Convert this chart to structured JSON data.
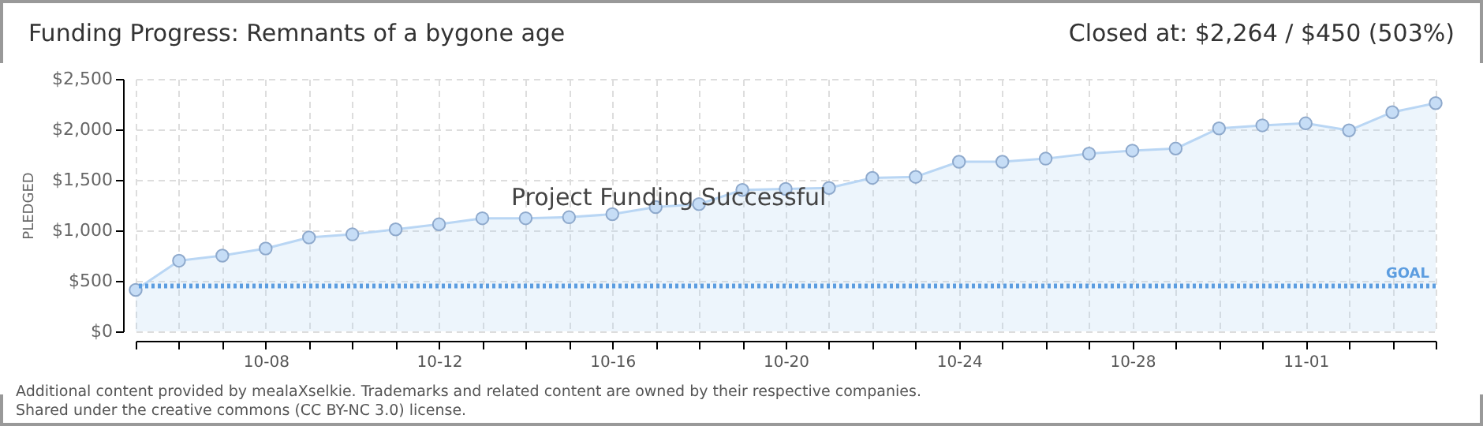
{
  "chart_data": {
    "type": "area",
    "title": "Funding Progress: Remnants of a bygone age",
    "subtitle": "Closed at: $2,264 / $450 (503%)",
    "ylabel": "PLEDGED",
    "x": [
      "--10-05",
      "--10-06",
      "--10-07",
      "--10-08",
      "--10-09",
      "--10-10",
      "--10-11",
      "--10-12",
      "--10-13",
      "--10-14",
      "--10-15",
      "--10-16",
      "--10-17",
      "--10-18",
      "--10-19",
      "--10-20",
      "--10-21",
      "--10-22",
      "--10-23",
      "--10-24",
      "--10-25",
      "--10-26",
      "--10-27",
      "--10-28",
      "--10-29",
      "--10-30",
      "--10-31",
      "--11-01",
      "--11-02",
      "--11-03",
      "--11-04"
    ],
    "series": [
      {
        "color": "#b9d6f4",
        "values": [
          410,
          700,
          750,
          820,
          930,
          960,
          1010,
          1060,
          1120,
          1120,
          1130,
          1160,
          1230,
          1260,
          1400,
          1410,
          1420,
          1520,
          1530,
          1680,
          1680,
          1710,
          1760,
          1790,
          1810,
          2010,
          2040,
          2060,
          1990,
          2170,
          2260
        ]
      }
    ],
    "xlim": [
      "--10-05",
      "--11-04"
    ],
    "xticks": [
      {
        "value": "--10-05",
        "label": null
      },
      {
        "value": "--10-06",
        "label": null
      },
      {
        "value": "--10-07",
        "label": null
      },
      {
        "value": "--10-08",
        "label": "10-08"
      },
      {
        "value": "--10-09",
        "label": null
      },
      {
        "value": "--10-10",
        "label": null
      },
      {
        "value": "--10-11",
        "label": null
      },
      {
        "value": "--10-12",
        "label": "10-12"
      },
      {
        "value": "--10-13",
        "label": null
      },
      {
        "value": "--10-14",
        "label": null
      },
      {
        "value": "--10-15",
        "label": null
      },
      {
        "value": "--10-16",
        "label": "10-16"
      },
      {
        "value": "--10-17",
        "label": null
      },
      {
        "value": "--10-18",
        "label": null
      },
      {
        "value": "--10-19",
        "label": null
      },
      {
        "value": "--10-20",
        "label": "10-20"
      },
      {
        "value": "--10-21",
        "label": null
      },
      {
        "value": "--10-22",
        "label": null
      },
      {
        "value": "--10-23",
        "label": null
      },
      {
        "value": "--10-24",
        "label": "10-24"
      },
      {
        "value": "--10-25",
        "label": null
      },
      {
        "value": "--10-26",
        "label": null
      },
      {
        "value": "--10-27",
        "label": null
      },
      {
        "value": "--10-28",
        "label": "10-28"
      },
      {
        "value": "--10-29",
        "label": null
      },
      {
        "value": "--10-30",
        "label": null
      },
      {
        "value": "--10-31",
        "label": null
      },
      {
        "value": "--11-01",
        "label": "11-01"
      },
      {
        "value": "--11-02",
        "label": null
      },
      {
        "value": "--11-03",
        "label": null
      },
      {
        "value": "--11-04",
        "label": null
      }
    ],
    "ylim": [
      0,
      2500
    ],
    "yticks": [
      {
        "value": 0,
        "label": "$0"
      },
      {
        "value": 500,
        "label": "$500"
      },
      {
        "value": 1000,
        "label": "$1,000"
      },
      {
        "value": 1500,
        "label": "$1,500"
      },
      {
        "value": 2000,
        "label": "$2,000"
      },
      {
        "value": 2500,
        "label": "$2,500"
      }
    ],
    "ref_lines": [
      {
        "axis": "y",
        "value": 450,
        "label": "GOAL",
        "color": "#5c9de0",
        "line_style": "dotted"
      }
    ],
    "annotations": [
      "Project Funding Successful",
      "Additional content provided by mealaXselkie. Trademarks and related content are owned by their respective companies.",
      "Shared under the creative commons (CC BY-NC 3.0) license."
    ],
    "grid": true,
    "marker": "circle"
  }
}
